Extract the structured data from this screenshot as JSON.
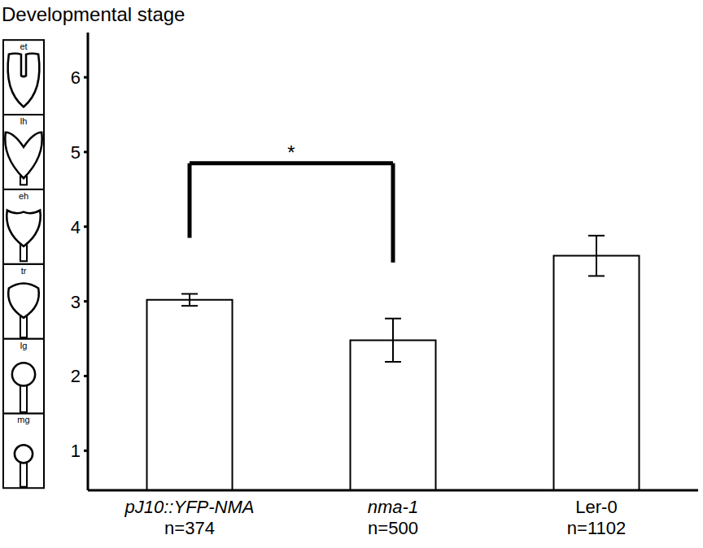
{
  "chart_data": {
    "type": "bar",
    "title": "Developmental stage",
    "categories": [
      "pJ10::YFP-NMA",
      "nma-1",
      "Ler-0"
    ],
    "n_labels": [
      "n=374",
      "n=500",
      "n=1102"
    ],
    "values": [
      3.02,
      2.48,
      3.61
    ],
    "errors": [
      0.08,
      0.29,
      0.27
    ],
    "color": "#ffffff",
    "ylim": [
      0.47,
      6.6
    ],
    "yticks": [
      1,
      2,
      3,
      4,
      5,
      6
    ],
    "stage_labels": [
      "mg",
      "lg",
      "tr",
      "eh",
      "lh",
      "et"
    ],
    "annotations": [
      {
        "text": "*",
        "between": [
          0,
          1
        ]
      }
    ],
    "grid": false
  }
}
